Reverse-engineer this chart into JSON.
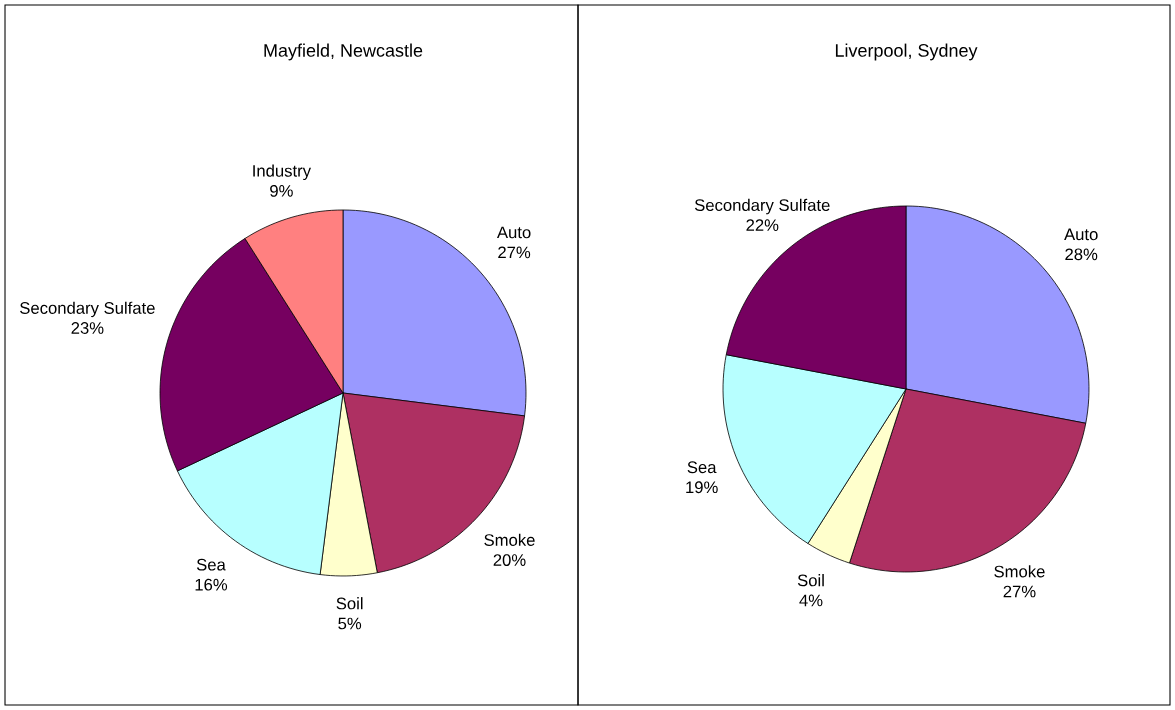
{
  "chart_data": [
    {
      "type": "pie",
      "title": "Mayfield, Newcastle",
      "categories": [
        "Auto",
        "Smoke",
        "Soil",
        "Sea",
        "Secondary Sulfate",
        "Industry"
      ],
      "values": [
        27,
        20,
        5,
        16,
        23,
        9
      ],
      "colors": [
        "#9999ff",
        "#ae3062",
        "#ffffcc",
        "#b7ffff",
        "#760060",
        "#ff8080"
      ],
      "value_labels": [
        "27%",
        "20%",
        "5%",
        "16%",
        "23%",
        "9%"
      ]
    },
    {
      "type": "pie",
      "title": "Liverpool, Sydney",
      "categories": [
        "Auto",
        "Smoke",
        "Soil",
        "Sea",
        "Secondary Sulfate"
      ],
      "values": [
        28,
        27,
        4,
        19,
        22
      ],
      "colors": [
        "#9999ff",
        "#ae3062",
        "#ffffcc",
        "#b7ffff",
        "#760060"
      ],
      "value_labels": [
        "28%",
        "27%",
        "4%",
        "19%",
        "22%"
      ]
    }
  ]
}
